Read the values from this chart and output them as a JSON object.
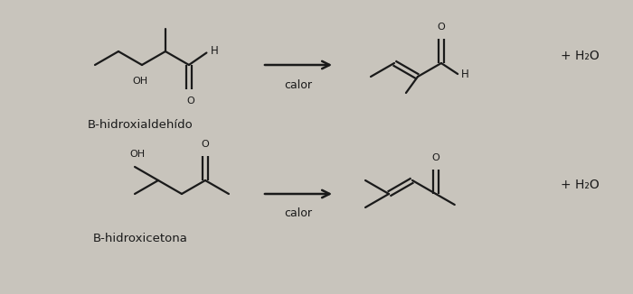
{
  "bg_color": "#c8c4bc",
  "line_color": "#1a1a1a",
  "figsize": [
    7.0,
    3.26
  ],
  "dpi": 100,
  "reaction1_label": "B-hidroxialdehído",
  "reaction2_label": "B-hidroxicetona",
  "calor": "calor",
  "plus_h2o": "+ H₂O"
}
